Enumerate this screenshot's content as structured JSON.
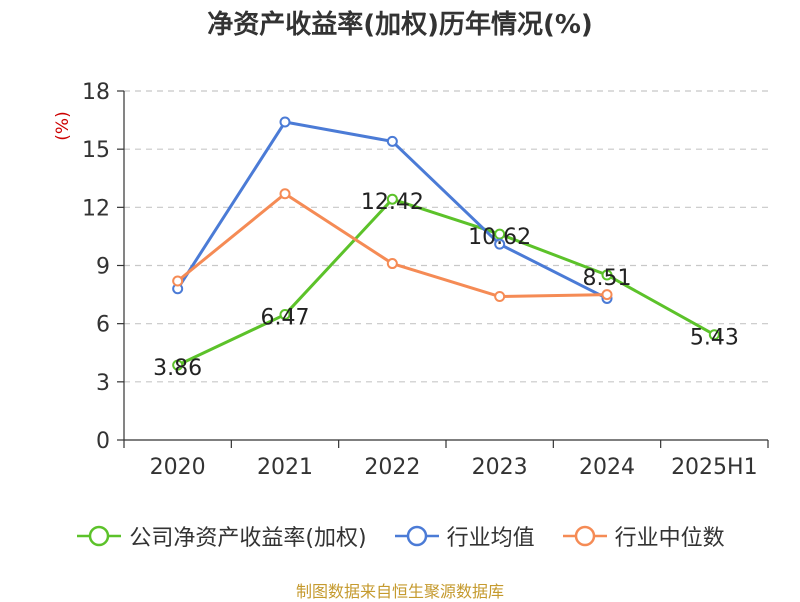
{
  "title": "净资产收益率(加权)历年情况(%)",
  "source": "制图数据来自恒生聚源数据库",
  "chart_data": {
    "type": "line",
    "categories": [
      "2020",
      "2021",
      "2022",
      "2023",
      "2024",
      "2025H1"
    ],
    "ylabel": "(%)",
    "ylim": [
      0,
      18
    ],
    "yticks": [
      "0",
      "3",
      "6",
      "9",
      "12",
      "15",
      "18"
    ],
    "grid": true,
    "legend_position": "bottom",
    "series": [
      {
        "name": "公司净资产收益率(加权)",
        "color": "#5cc22a",
        "values": [
          3.86,
          6.47,
          12.42,
          10.62,
          8.51,
          5.43
        ],
        "labels": [
          "3.86",
          "6.47",
          "12.42",
          "10.62",
          "8.51",
          "5.43"
        ]
      },
      {
        "name": "行业均值",
        "color": "#4b7bd6",
        "values": [
          7.8,
          16.4,
          15.4,
          10.1,
          7.3,
          null
        ]
      },
      {
        "name": "行业中位数",
        "color": "#f58b55",
        "values": [
          8.2,
          12.7,
          9.1,
          7.4,
          7.5,
          null
        ]
      }
    ]
  }
}
